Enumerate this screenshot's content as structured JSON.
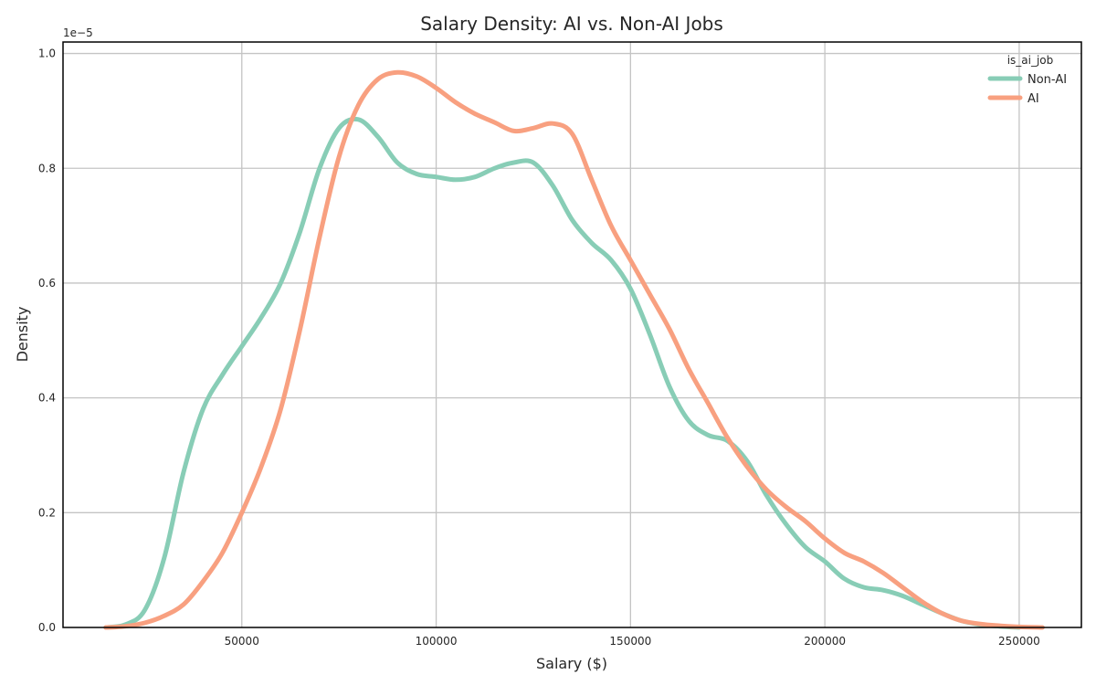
{
  "chart_data": {
    "type": "line",
    "title": "Salary Density: AI vs. Non-AI Jobs",
    "xlabel": "Salary ($)",
    "ylabel": "Density",
    "y_scale_label": "1e−5",
    "xlim": [
      4000,
      266000
    ],
    "ylim": [
      0,
      1.02
    ],
    "x_ticks": [
      50000,
      100000,
      150000,
      200000,
      250000
    ],
    "x_tick_labels": [
      "50000",
      "100000",
      "150000",
      "200000",
      "250000"
    ],
    "y_ticks": [
      0,
      0.2,
      0.4,
      0.6,
      0.8,
      1.0
    ],
    "y_tick_labels": [
      "0.0",
      "0.2",
      "0.4",
      "0.6",
      "0.8",
      "1.0"
    ],
    "grid": true,
    "legend": {
      "title": "is_ai_job",
      "placement": "top-right"
    },
    "series": [
      {
        "name": "Non-AI",
        "color": "#88cdb6",
        "x": [
          15000,
          20000,
          25000,
          30000,
          35000,
          40000,
          45000,
          50000,
          55000,
          60000,
          65000,
          70000,
          75000,
          80000,
          85000,
          90000,
          95000,
          100000,
          105000,
          110000,
          115000,
          120000,
          125000,
          130000,
          135000,
          140000,
          145000,
          150000,
          155000,
          160000,
          165000,
          170000,
          175000,
          180000,
          185000,
          190000,
          195000,
          200000,
          205000,
          210000,
          215000,
          220000,
          225000,
          230000,
          235000,
          240000,
          245000,
          250000
        ],
        "y": [
          0,
          0.005,
          0.03,
          0.12,
          0.27,
          0.38,
          0.44,
          0.49,
          0.54,
          0.6,
          0.69,
          0.8,
          0.87,
          0.885,
          0.855,
          0.81,
          0.79,
          0.785,
          0.78,
          0.785,
          0.8,
          0.81,
          0.81,
          0.77,
          0.71,
          0.67,
          0.64,
          0.59,
          0.51,
          0.42,
          0.36,
          0.335,
          0.325,
          0.29,
          0.23,
          0.18,
          0.14,
          0.115,
          0.085,
          0.07,
          0.065,
          0.055,
          0.04,
          0.025,
          0.012,
          0.005,
          0.002,
          0
        ]
      },
      {
        "name": "AI",
        "color": "#f8a080",
        "x": [
          15000,
          20000,
          25000,
          30000,
          35000,
          40000,
          45000,
          50000,
          55000,
          60000,
          65000,
          70000,
          75000,
          80000,
          85000,
          90000,
          95000,
          100000,
          105000,
          110000,
          115000,
          120000,
          125000,
          130000,
          135000,
          140000,
          145000,
          150000,
          155000,
          160000,
          165000,
          170000,
          175000,
          180000,
          185000,
          190000,
          195000,
          200000,
          205000,
          210000,
          215000,
          220000,
          225000,
          230000,
          235000,
          240000,
          245000,
          250000,
          256000
        ],
        "y": [
          0,
          0.002,
          0.008,
          0.02,
          0.04,
          0.08,
          0.13,
          0.2,
          0.28,
          0.38,
          0.52,
          0.68,
          0.82,
          0.91,
          0.955,
          0.967,
          0.96,
          0.94,
          0.915,
          0.895,
          0.88,
          0.865,
          0.87,
          0.878,
          0.86,
          0.78,
          0.7,
          0.64,
          0.58,
          0.52,
          0.45,
          0.39,
          0.33,
          0.28,
          0.24,
          0.21,
          0.185,
          0.155,
          0.13,
          0.115,
          0.095,
          0.07,
          0.045,
          0.025,
          0.012,
          0.006,
          0.003,
          0.001,
          0
        ]
      }
    ]
  }
}
